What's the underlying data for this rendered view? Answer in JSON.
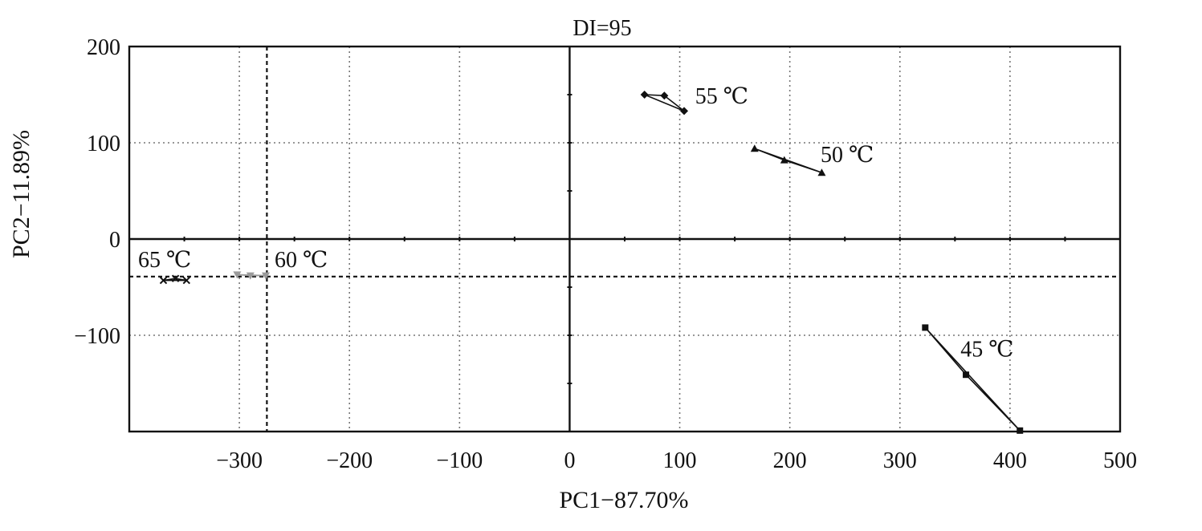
{
  "chart_data": {
    "type": "scatter",
    "title": "DI=95",
    "xlabel": "PC1−87.70%",
    "ylabel": "PC2−11.89%",
    "xlim": [
      -400,
      500
    ],
    "ylim": [
      -200,
      200
    ],
    "xticks": [
      -300,
      -200,
      -100,
      0,
      100,
      200,
      300,
      400,
      500
    ],
    "xtick_labels": [
      "−300",
      "−200",
      "−100",
      "0",
      "100",
      "200",
      "300",
      "400",
      "500"
    ],
    "yticks": [
      -100,
      0,
      100,
      200
    ],
    "ytick_labels": [
      "−100",
      "0",
      "100",
      "200"
    ],
    "grid": true,
    "reference_lines": {
      "x": -275,
      "y": -39
    },
    "series": [
      {
        "name": "55 ℃",
        "marker": "diamond",
        "color": "#111111",
        "points": [
          [
            68,
            150
          ],
          [
            86,
            149
          ],
          [
            104,
            133
          ]
        ],
        "label_at": [
          114,
          141
        ]
      },
      {
        "name": "50 ℃",
        "marker": "triangle",
        "color": "#111111",
        "points": [
          [
            168,
            94
          ],
          [
            195,
            82
          ],
          [
            229,
            69
          ]
        ],
        "label_at": [
          228,
          80
        ]
      },
      {
        "name": "45 ℃",
        "marker": "square",
        "color": "#111111",
        "points": [
          [
            323,
            -92
          ],
          [
            360,
            -141
          ],
          [
            409,
            -199
          ]
        ],
        "label_at": [
          355,
          -122
        ]
      },
      {
        "name": "60 ℃",
        "marker": "triangle-down",
        "color": "#9a9a9a",
        "points": [
          [
            -302,
            -37
          ],
          [
            -290,
            -38
          ],
          [
            -276,
            -38
          ]
        ],
        "label_at": [
          -268,
          -29
        ]
      },
      {
        "name": "65 ℃",
        "marker": "x",
        "color": "#111111",
        "points": [
          [
            -369,
            -43
          ],
          [
            -358,
            -41
          ],
          [
            -348,
            -43
          ]
        ],
        "label_at": [
          -392,
          -29
        ]
      }
    ]
  }
}
